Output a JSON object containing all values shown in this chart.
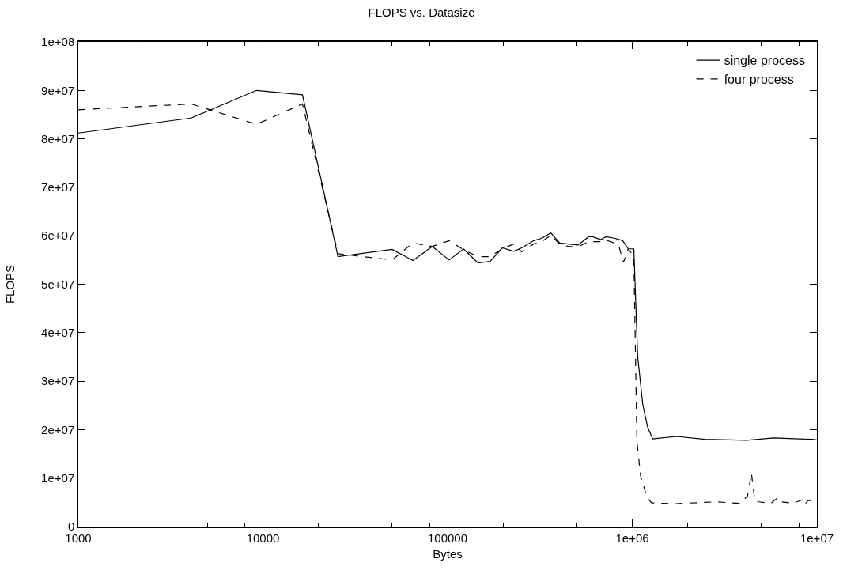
{
  "chart_data": {
    "type": "line",
    "title": "FLOPS vs. Datasize",
    "xlabel": "Bytes",
    "ylabel": "FLOPS",
    "log": "x",
    "xlim": [
      1000,
      10000000
    ],
    "ylim": [
      0,
      100000000
    ],
    "xticks": [
      1000,
      {
        "value": 2000,
        "label": null
      },
      {
        "value": 5000,
        "label": null
      },
      {
        "value": 8000,
        "label": null
      },
      10000,
      {
        "value": 20000,
        "label": null
      },
      {
        "value": 50000,
        "label": null
      },
      {
        "value": 80000,
        "label": null
      },
      100000,
      {
        "value": 200000,
        "label": null
      },
      {
        "value": 500000,
        "label": null
      },
      {
        "value": 800000,
        "label": null
      },
      {
        "value": 1000000,
        "label": "1e+06"
      },
      {
        "value": 2000000,
        "label": null
      },
      {
        "value": 5000000,
        "label": null
      },
      {
        "value": 8000000,
        "label": null
      },
      {
        "value": 10000000,
        "label": "1e+07"
      }
    ],
    "yticks": [
      0,
      {
        "value": 10000000,
        "label": "1e+07"
      },
      {
        "value": 20000000,
        "label": "2e+07"
      },
      {
        "value": 30000000,
        "label": "3e+07"
      },
      {
        "value": 40000000,
        "label": "4e+07"
      },
      {
        "value": 50000000,
        "label": "5e+07"
      },
      {
        "value": 60000000,
        "label": "6e+07"
      },
      {
        "value": 70000000,
        "label": "7e+07"
      },
      {
        "value": 80000000,
        "label": "8e+07"
      },
      {
        "value": 90000000,
        "label": "9e+07"
      },
      {
        "value": 100000000,
        "label": "1e+08"
      }
    ],
    "grid": false,
    "legend": "top right",
    "marker": "none",
    "series": [
      {
        "name": "single process",
        "color": "#000000",
        "line_style": "solid",
        "x": [
          1000,
          4085,
          9226,
          16370,
          25500,
          50000,
          64900,
          82600,
          102000,
          122000,
          146000,
          170000,
          198000,
          228000,
          252000,
          293000,
          324000,
          362000,
          405000,
          450000,
          509000,
          580000,
          610000,
          676000,
          720000,
          802000,
          887000,
          951000,
          1020000,
          1070000,
          1140000,
          1210000,
          1290000,
          1380000,
          1740000,
          2470000,
          4170000,
          5810000,
          9420000,
          10000000
        ],
        "values": [
          81200000,
          84300000,
          90000000,
          89100000,
          55700000,
          57200000,
          54900000,
          57800000,
          55000000,
          57300000,
          54400000,
          54700000,
          57500000,
          56800000,
          57500000,
          59000000,
          59500000,
          60600000,
          58500000,
          58300000,
          58100000,
          59800000,
          59800000,
          59200000,
          59800000,
          59500000,
          59000000,
          57300000,
          57300000,
          35100000,
          25200000,
          20600000,
          18100000,
          18200000,
          18600000,
          18000000,
          17800000,
          18300000,
          18000000,
          17900000
        ]
      },
      {
        "name": "four process",
        "color": "#000000",
        "line_style": "dashed",
        "x": [
          1000,
          4085,
          9226,
          16370,
          25500,
          50000,
          64900,
          82600,
          102000,
          122000,
          146000,
          170000,
          198000,
          228000,
          252000,
          293000,
          324000,
          362000,
          405000,
          450000,
          509000,
          580000,
          676000,
          720000,
          802000,
          843000,
          896000,
          951000,
          1020000,
          1060000,
          1110000,
          1200000,
          1270000,
          1690000,
          2820000,
          3810000,
          4210000,
          4420000,
          4610000,
          4850000,
          5640000,
          6110000,
          6360000,
          7460000,
          8430000,
          8590000,
          8960000,
          9420000,
          10000000
        ],
        "values": [
          86000000,
          87200000,
          83000000,
          87200000,
          56300000,
          55000000,
          58500000,
          57800000,
          59000000,
          57100000,
          55700000,
          55700000,
          57300000,
          58300000,
          56700000,
          58300000,
          58800000,
          60100000,
          58300000,
          57800000,
          57700000,
          58800000,
          58800000,
          59100000,
          58500000,
          58100000,
          54500000,
          57300000,
          55700000,
          17600000,
          10400000,
          6100000,
          4900000,
          4700000,
          5100000,
          4800000,
          6300000,
          11000000,
          5400000,
          5100000,
          4800000,
          5900000,
          5100000,
          4800000,
          5600000,
          4600000,
          5400000,
          5300000,
          5300000
        ]
      }
    ]
  }
}
